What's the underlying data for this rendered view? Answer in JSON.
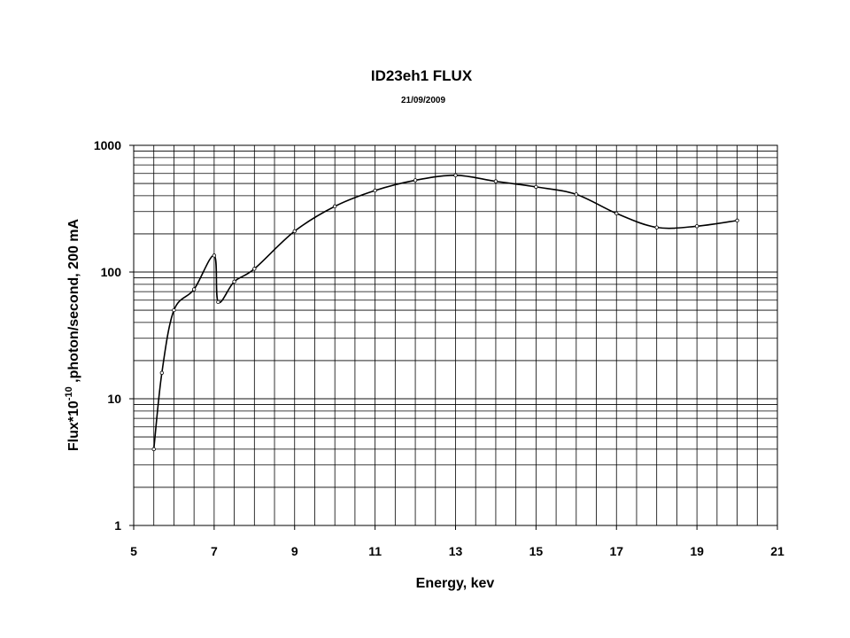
{
  "chart_data": {
    "type": "line",
    "title": "ID23eh1 FLUX",
    "subtitle": "21/09/2009",
    "xlabel": "Energy, kev",
    "ylabel_main": "Flux*10",
    "ylabel_sup": "-10",
    "ylabel_rest": " ,photon/second, 200 mA",
    "xlim": [
      5,
      21
    ],
    "ylim": [
      1,
      1000
    ],
    "yscale": "log",
    "grid": true,
    "xticks": [
      5,
      7,
      9,
      11,
      13,
      15,
      17,
      19,
      21
    ],
    "xtick_labels": [
      "5",
      "7",
      "9",
      "11",
      "13",
      "15",
      "17",
      "19",
      "21"
    ],
    "yticks": [
      1,
      10,
      100,
      1000
    ],
    "ytick_labels": [
      "1",
      "10",
      "100",
      "1000"
    ],
    "series": [
      {
        "x": [
          5.5,
          5.7,
          6.0,
          6.5,
          7.0,
          7.1,
          7.5,
          8.0,
          9.0,
          10.0,
          11.0,
          12.0,
          13.0,
          14.0,
          15.0,
          16.0,
          17.0,
          18.0,
          19.0,
          20.0
        ],
        "y": [
          4,
          16,
          50,
          73,
          135,
          58,
          84,
          106,
          210,
          330,
          440,
          530,
          580,
          520,
          470,
          410,
          290,
          225,
          230,
          255
        ]
      }
    ],
    "line_color": "#000000"
  }
}
